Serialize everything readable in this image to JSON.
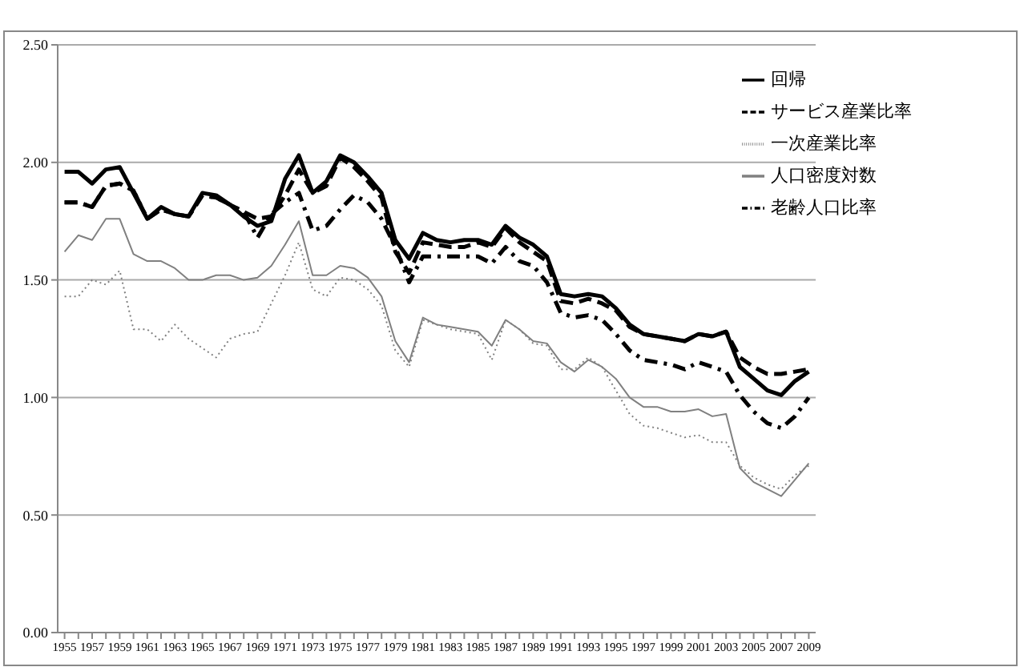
{
  "chart_data": {
    "type": "line",
    "x": [
      1955,
      1956,
      1957,
      1958,
      1959,
      1960,
      1961,
      1962,
      1963,
      1964,
      1965,
      1966,
      1967,
      1968,
      1969,
      1970,
      1971,
      1972,
      1973,
      1974,
      1975,
      1976,
      1977,
      1978,
      1979,
      1980,
      1981,
      1982,
      1983,
      1984,
      1985,
      1986,
      1987,
      1988,
      1989,
      1990,
      1991,
      1992,
      1993,
      1994,
      1995,
      1996,
      1997,
      1998,
      1999,
      2000,
      2001,
      2002,
      2003,
      2004,
      2005,
      2006,
      2007,
      2008,
      2009
    ],
    "series": [
      {
        "name": "回帰",
        "color": "#000000",
        "line_style": "solid",
        "values": [
          1.96,
          1.96,
          1.91,
          1.97,
          1.98,
          1.87,
          1.76,
          1.81,
          1.78,
          1.77,
          1.87,
          1.86,
          1.82,
          1.77,
          1.73,
          1.75,
          1.93,
          2.03,
          1.87,
          1.92,
          2.03,
          2.0,
          1.94,
          1.87,
          1.67,
          1.59,
          1.7,
          1.67,
          1.66,
          1.67,
          1.67,
          1.65,
          1.73,
          1.68,
          1.65,
          1.6,
          1.44,
          1.43,
          1.44,
          1.43,
          1.38,
          1.31,
          1.27,
          1.26,
          1.25,
          1.24,
          1.27,
          1.26,
          1.28,
          1.13,
          1.08,
          1.03,
          1.01,
          1.07,
          1.11
        ]
      },
      {
        "name": "サービス産業比率",
        "color": "#000000",
        "line_style": "dashed",
        "values": [
          1.83,
          1.83,
          1.81,
          1.9,
          1.91,
          1.88,
          1.76,
          1.8,
          1.78,
          1.77,
          1.86,
          1.85,
          1.82,
          1.79,
          1.76,
          1.77,
          1.86,
          1.97,
          1.87,
          1.9,
          2.02,
          1.98,
          1.92,
          1.85,
          1.62,
          1.53,
          1.66,
          1.65,
          1.64,
          1.64,
          1.66,
          1.64,
          1.72,
          1.66,
          1.62,
          1.58,
          1.41,
          1.4,
          1.42,
          1.4,
          1.37,
          1.3,
          1.27,
          1.26,
          1.25,
          1.24,
          1.27,
          1.26,
          1.28,
          1.17,
          1.13,
          1.1,
          1.1,
          1.11,
          1.12
        ]
      },
      {
        "name": "一次産業比率",
        "color": "#808080",
        "line_style": "dotted",
        "values": [
          1.43,
          1.43,
          1.5,
          1.48,
          1.54,
          1.29,
          1.29,
          1.24,
          1.31,
          1.25,
          1.21,
          1.17,
          1.25,
          1.27,
          1.28,
          1.4,
          1.52,
          1.66,
          1.46,
          1.43,
          1.51,
          1.5,
          1.46,
          1.39,
          1.2,
          1.13,
          1.33,
          1.31,
          1.29,
          1.28,
          1.27,
          1.16,
          1.33,
          1.29,
          1.23,
          1.22,
          1.12,
          1.12,
          1.17,
          1.13,
          1.03,
          0.93,
          0.88,
          0.87,
          0.85,
          0.83,
          0.84,
          0.81,
          0.81,
          0.71,
          0.66,
          0.63,
          0.61,
          0.67,
          0.71
        ]
      },
      {
        "name": "人口密度対数",
        "color": "#808080",
        "line_style": "solid",
        "values": [
          1.62,
          1.69,
          1.67,
          1.76,
          1.76,
          1.61,
          1.58,
          1.58,
          1.55,
          1.5,
          1.5,
          1.52,
          1.52,
          1.5,
          1.51,
          1.56,
          1.65,
          1.75,
          1.52,
          1.52,
          1.56,
          1.55,
          1.51,
          1.43,
          1.24,
          1.15,
          1.34,
          1.31,
          1.3,
          1.29,
          1.28,
          1.22,
          1.33,
          1.29,
          1.24,
          1.23,
          1.15,
          1.11,
          1.16,
          1.13,
          1.08,
          1.0,
          0.96,
          0.96,
          0.94,
          0.94,
          0.95,
          0.92,
          0.93,
          0.7,
          0.64,
          0.61,
          0.58,
          0.65,
          0.72
        ]
      },
      {
        "name": "老齢人口比率",
        "color": "#000000",
        "line_style": "dashdot",
        "values": [
          1.83,
          1.83,
          1.81,
          1.9,
          1.91,
          1.88,
          1.76,
          1.8,
          1.78,
          1.77,
          1.86,
          1.85,
          1.82,
          1.79,
          1.68,
          1.78,
          1.83,
          1.87,
          1.71,
          1.73,
          1.8,
          1.86,
          1.83,
          1.76,
          1.64,
          1.49,
          1.6,
          1.6,
          1.6,
          1.6,
          1.6,
          1.57,
          1.64,
          1.58,
          1.56,
          1.49,
          1.36,
          1.34,
          1.35,
          1.33,
          1.27,
          1.2,
          1.16,
          1.15,
          1.14,
          1.12,
          1.15,
          1.13,
          1.11,
          1.01,
          0.94,
          0.89,
          0.87,
          0.92,
          1.0
        ]
      }
    ],
    "xlim": [
      1954.5,
      2009.5
    ],
    "xticks": [
      1955,
      {
        "value": 1956,
        "label": null
      },
      1957,
      {
        "value": 1958,
        "label": null
      },
      1959,
      {
        "value": 1960,
        "label": null
      },
      1961,
      {
        "value": 1962,
        "label": null
      },
      1963,
      {
        "value": 1964,
        "label": null
      },
      1965,
      {
        "value": 1966,
        "label": null
      },
      1967,
      {
        "value": 1968,
        "label": null
      },
      1969,
      {
        "value": 1970,
        "label": null
      },
      1971,
      {
        "value": 1972,
        "label": null
      },
      1973,
      {
        "value": 1974,
        "label": null
      },
      1975,
      {
        "value": 1976,
        "label": null
      },
      1977,
      {
        "value": 1978,
        "label": null
      },
      1979,
      {
        "value": 1980,
        "label": null
      },
      1981,
      {
        "value": 1982,
        "label": null
      },
      1983,
      {
        "value": 1984,
        "label": null
      },
      1985,
      {
        "value": 1986,
        "label": null
      },
      1987,
      {
        "value": 1988,
        "label": null
      },
      1989,
      {
        "value": 1990,
        "label": null
      },
      1991,
      {
        "value": 1992,
        "label": null
      },
      1993,
      {
        "value": 1994,
        "label": null
      },
      1995,
      {
        "value": 1996,
        "label": null
      },
      1997,
      {
        "value": 1998,
        "label": null
      },
      1999,
      {
        "value": 2000,
        "label": null
      },
      2001,
      {
        "value": 2002,
        "label": null
      },
      2003,
      {
        "value": 2004,
        "label": null
      },
      2005,
      {
        "value": 2006,
        "label": null
      },
      2007,
      {
        "value": 2008,
        "label": null
      },
      2009
    ],
    "ylim": [
      0,
      2.5
    ],
    "yticks": [
      {
        "value": 0,
        "label": "0.00"
      },
      {
        "value": 0.5,
        "label": "0.50"
      },
      {
        "value": 1,
        "label": "1.00"
      },
      {
        "value": 1.5,
        "label": "1.50"
      },
      {
        "value": 2,
        "label": "2.00"
      },
      {
        "value": 2.5,
        "label": "2.50"
      }
    ],
    "grid": "y",
    "legend": "top right",
    "marker": "none"
  }
}
